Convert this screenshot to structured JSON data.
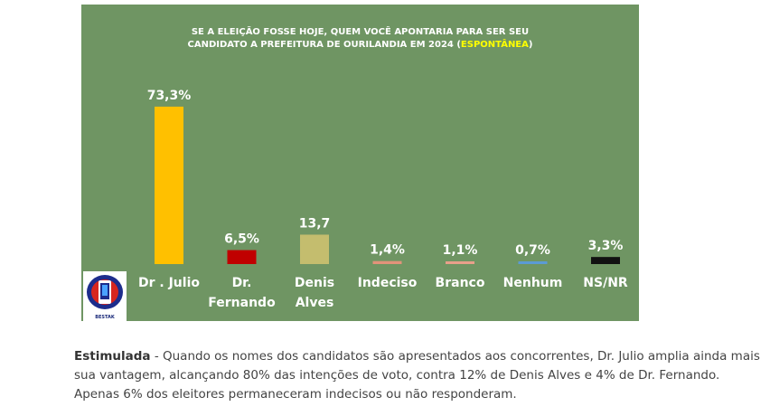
{
  "chart_data": {
    "type": "bar",
    "title_line1": "SE A ELEIÇÃO FOSSE HOJE, QUEM VOCÊ APONTARIA PARA SER SEU",
    "title_line2": "CANDIDATO A PREFEITURA DE  OURILANDIA EM 2024 (",
    "title_highlight": "ESPONTÂNEA",
    "title_end": ")",
    "categories": [
      [
        "Dr . Julio"
      ],
      [
        "Dr.",
        "Fernando"
      ],
      [
        "Denis",
        "Alves"
      ],
      [
        "Indeciso"
      ],
      [
        "Branco"
      ],
      [
        "Nenhum"
      ],
      [
        "NS/NR"
      ]
    ],
    "values": [
      73.3,
      6.5,
      13.7,
      1.4,
      1.1,
      0.7,
      3.3
    ],
    "data_labels": [
      "73,3%",
      "6,5%",
      "13,7",
      "1,4%",
      "1,1%",
      "0,7%",
      "3,3%"
    ],
    "colors": [
      "#ffc000",
      "#c00000",
      "#c4bd6e",
      "#e2937a",
      "#e8a08a",
      "#5b9bd5",
      "#111111"
    ],
    "ylim": [
      0,
      80
    ],
    "background": "#6f9563",
    "grid": false,
    "legend": "none"
  },
  "logo": {
    "text": "BESTAK"
  },
  "caption": {
    "bold": "Estimulada",
    "text": " - Quando os nomes dos candidatos são apresentados aos concorrentes, Dr. Julio amplia ainda mais sua vantagem, alcançando 80% das intenções de voto, contra 12% de Denis Alves e 4% de Dr. Fernando. Apenas 6% dos eleitores permaneceram indecisos ou não responderam."
  }
}
